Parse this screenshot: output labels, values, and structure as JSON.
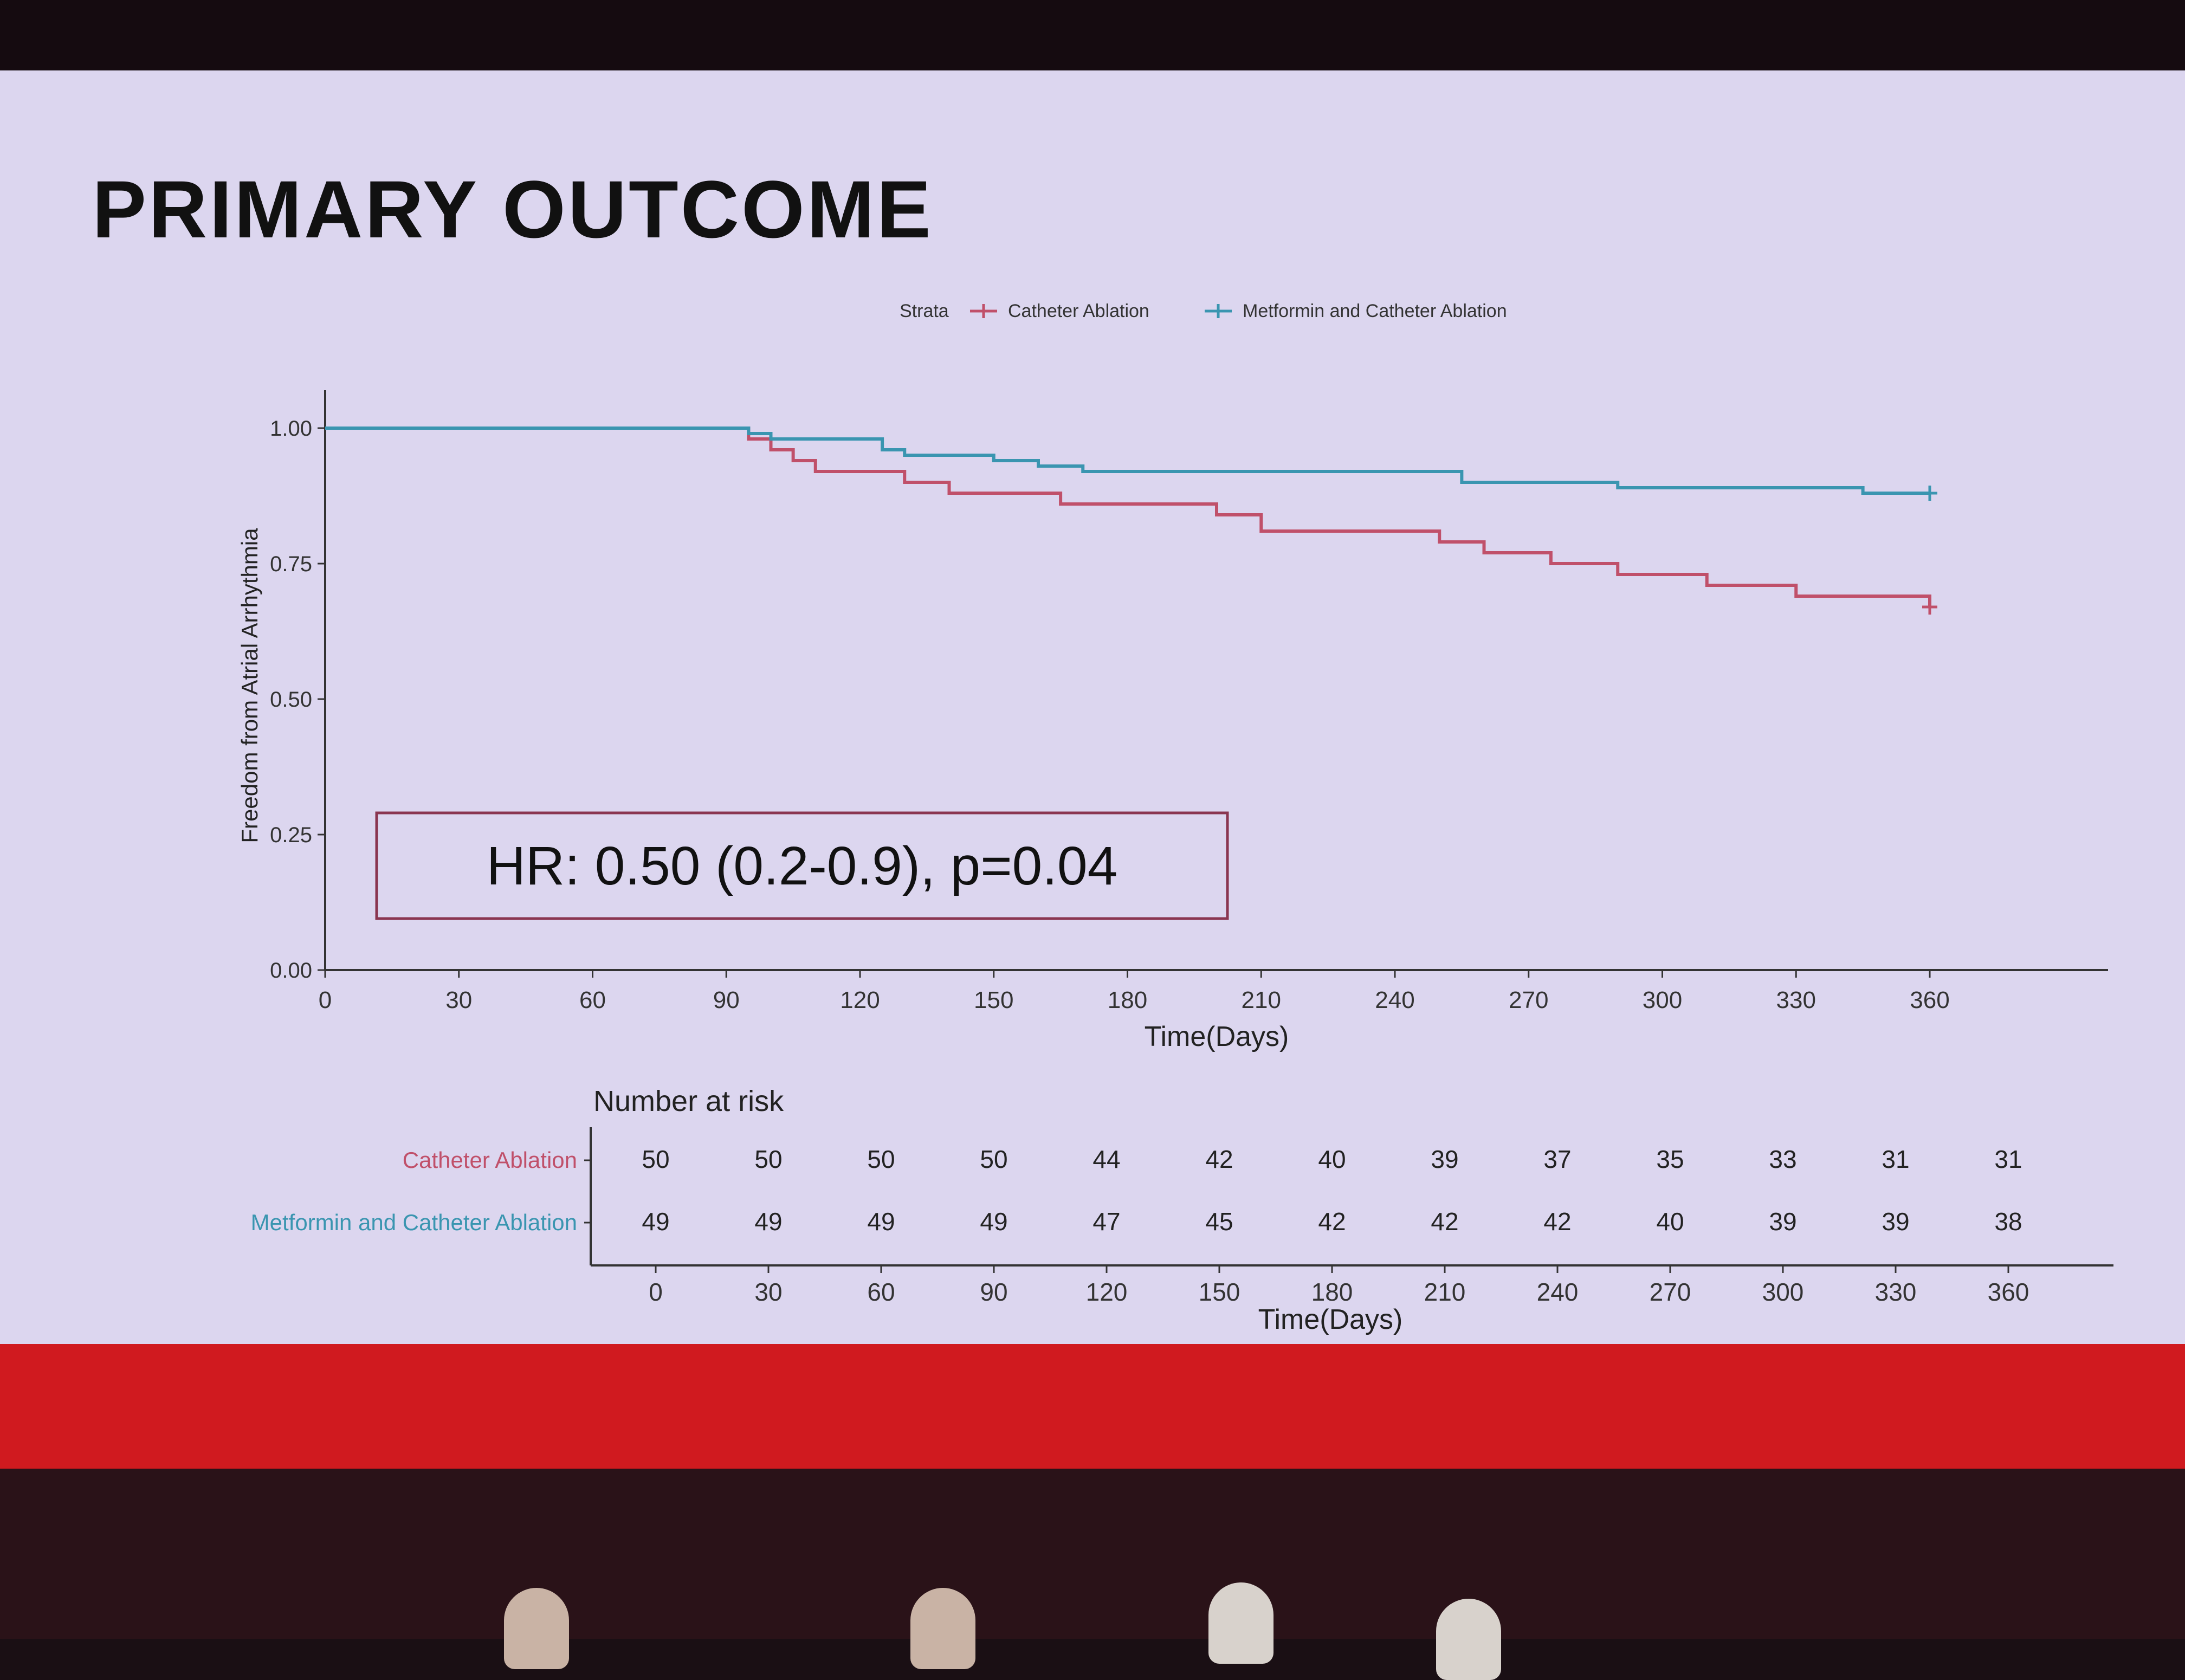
{
  "slide": {
    "title": "PRIMARY OUTCOME"
  },
  "colors": {
    "catheter": "#c0506a",
    "metformin": "#3a95b0",
    "accent_band": "#d01a1f"
  },
  "chart_data": {
    "type": "line",
    "subtype": "kaplan-meier",
    "xlabel": "Time(Days)",
    "ylabel": "Freedom from Atrial Arrhythmia",
    "xlim": [
      0,
      400
    ],
    "ylim": [
      0,
      1.05
    ],
    "x_ticks": [
      0,
      30,
      60,
      90,
      120,
      150,
      180,
      210,
      240,
      270,
      300,
      330,
      360
    ],
    "y_ticks": [
      "0.00",
      "0.25",
      "0.50",
      "0.75",
      "1.00"
    ],
    "legend": {
      "title": "Strata",
      "placement": "top"
    },
    "series": [
      {
        "name": "Catheter Ablation",
        "color": "#c0506a",
        "x": [
          0,
          90,
          95,
          100,
          105,
          110,
          130,
          140,
          165,
          200,
          210,
          250,
          260,
          275,
          290,
          310,
          330,
          360
        ],
        "y": [
          1.0,
          1.0,
          0.98,
          0.96,
          0.94,
          0.92,
          0.9,
          0.88,
          0.86,
          0.84,
          0.81,
          0.79,
          0.77,
          0.75,
          0.73,
          0.71,
          0.69,
          0.67
        ]
      },
      {
        "name": "Metformin and Catheter Ablation",
        "color": "#3a95b0",
        "x": [
          0,
          90,
          95,
          100,
          125,
          130,
          150,
          160,
          170,
          250,
          255,
          290,
          345,
          360
        ],
        "y": [
          1.0,
          1.0,
          0.99,
          0.98,
          0.96,
          0.95,
          0.94,
          0.93,
          0.92,
          0.92,
          0.9,
          0.89,
          0.88,
          0.88
        ]
      }
    ],
    "annotation": "HR: 0.50 (0.2-0.9), p=0.04"
  },
  "risk_table": {
    "title": "Number at risk",
    "xlabel": "Time(Days)",
    "times": [
      0,
      30,
      60,
      90,
      120,
      150,
      180,
      210,
      240,
      270,
      300,
      330,
      360
    ],
    "rows": [
      {
        "label": "Catheter Ablation",
        "color": "#c0506a",
        "values": [
          50,
          50,
          50,
          50,
          44,
          42,
          40,
          39,
          37,
          35,
          33,
          31,
          31
        ]
      },
      {
        "label": "Metformin and Catheter Ablation",
        "color": "#3a95b0",
        "values": [
          49,
          49,
          49,
          49,
          47,
          45,
          42,
          42,
          42,
          40,
          39,
          39,
          38
        ]
      }
    ]
  }
}
